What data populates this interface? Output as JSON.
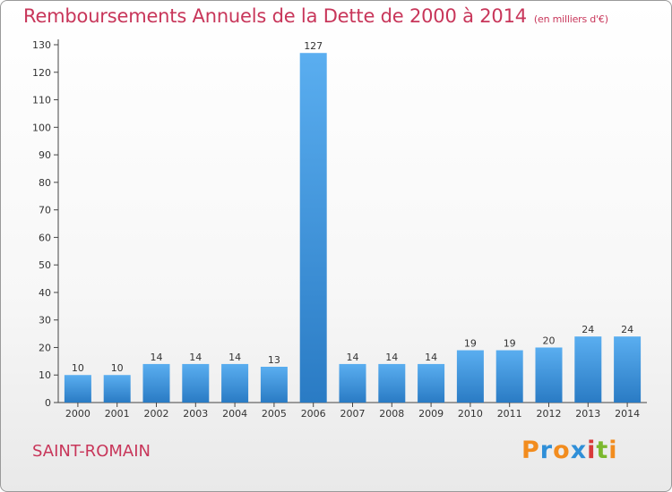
{
  "header": {
    "title": "Remboursements Annuels de la Dette de 2000 à 2014",
    "unit": "(en milliers d'€)"
  },
  "footer": {
    "commune": "SAINT-ROMAIN",
    "logo": "Proxiti"
  },
  "colors": {
    "title": "#c8365a",
    "bar_top": "#5aaef0",
    "bar_bottom": "#2a7bc4",
    "logo_letters": [
      "#f28c1e",
      "#2f8fd8",
      "#f28c1e",
      "#2f8fd8",
      "#d83a3a",
      "#7bb82e",
      "#f28c1e"
    ]
  },
  "chart_data": {
    "type": "bar",
    "title": "Remboursements Annuels de la Dette de 2000 à 2014",
    "subtitle": "(en milliers d'€)",
    "categories": [
      "2000",
      "2001",
      "2002",
      "2003",
      "2004",
      "2005",
      "2006",
      "2007",
      "2008",
      "2009",
      "2010",
      "2011",
      "2012",
      "2013",
      "2014"
    ],
    "values": [
      10,
      10,
      14,
      14,
      14,
      13,
      127,
      14,
      14,
      14,
      19,
      19,
      20,
      24,
      24
    ],
    "yticks": [
      0,
      10,
      20,
      30,
      40,
      50,
      60,
      70,
      80,
      90,
      100,
      110,
      120,
      130
    ],
    "ylim": [
      0,
      130
    ],
    "grid": false,
    "legend": "none"
  }
}
